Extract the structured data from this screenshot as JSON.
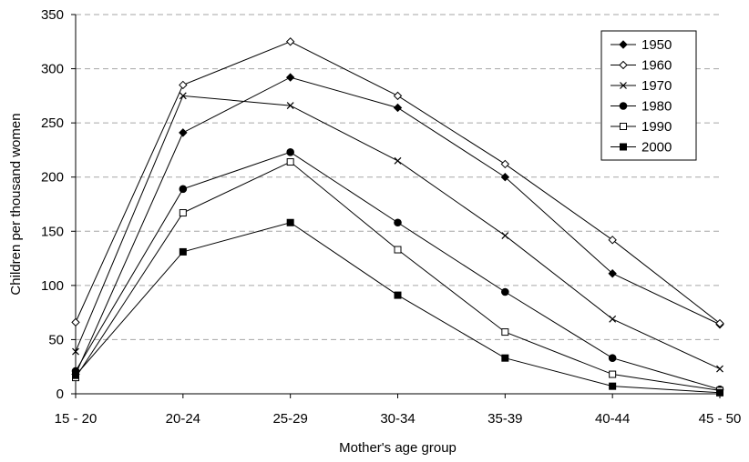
{
  "chart_data": {
    "type": "line",
    "title": "",
    "xlabel": "Mother's age group",
    "ylabel": "Children per thousand women",
    "categories": [
      "15 - 20",
      "20-24",
      "25-29",
      "30-34",
      "35-39",
      "40-44",
      "45 - 50"
    ],
    "ylim": [
      0,
      350
    ],
    "yticks": [
      0,
      50,
      100,
      150,
      200,
      250,
      300,
      350
    ],
    "grid": "horizontal dashed",
    "legend_position": "top-right",
    "series": [
      {
        "name": "1950",
        "marker": "diamond-filled",
        "values": [
          18,
          241,
          292,
          264,
          200,
          111,
          64
        ]
      },
      {
        "name": "1960",
        "marker": "diamond-open",
        "values": [
          66,
          285,
          325,
          275,
          212,
          142,
          65
        ]
      },
      {
        "name": "1970",
        "marker": "x",
        "values": [
          39,
          275,
          266,
          215,
          146,
          69,
          23
        ]
      },
      {
        "name": "1980",
        "marker": "circle-filled",
        "values": [
          21,
          189,
          223,
          158,
          94,
          33,
          4
        ]
      },
      {
        "name": "1990",
        "marker": "square-open",
        "values": [
          15,
          167,
          214,
          133,
          57,
          18,
          3
        ]
      },
      {
        "name": "2000",
        "marker": "square-filled",
        "values": [
          17,
          131,
          158,
          91,
          33,
          7,
          1
        ]
      }
    ]
  }
}
